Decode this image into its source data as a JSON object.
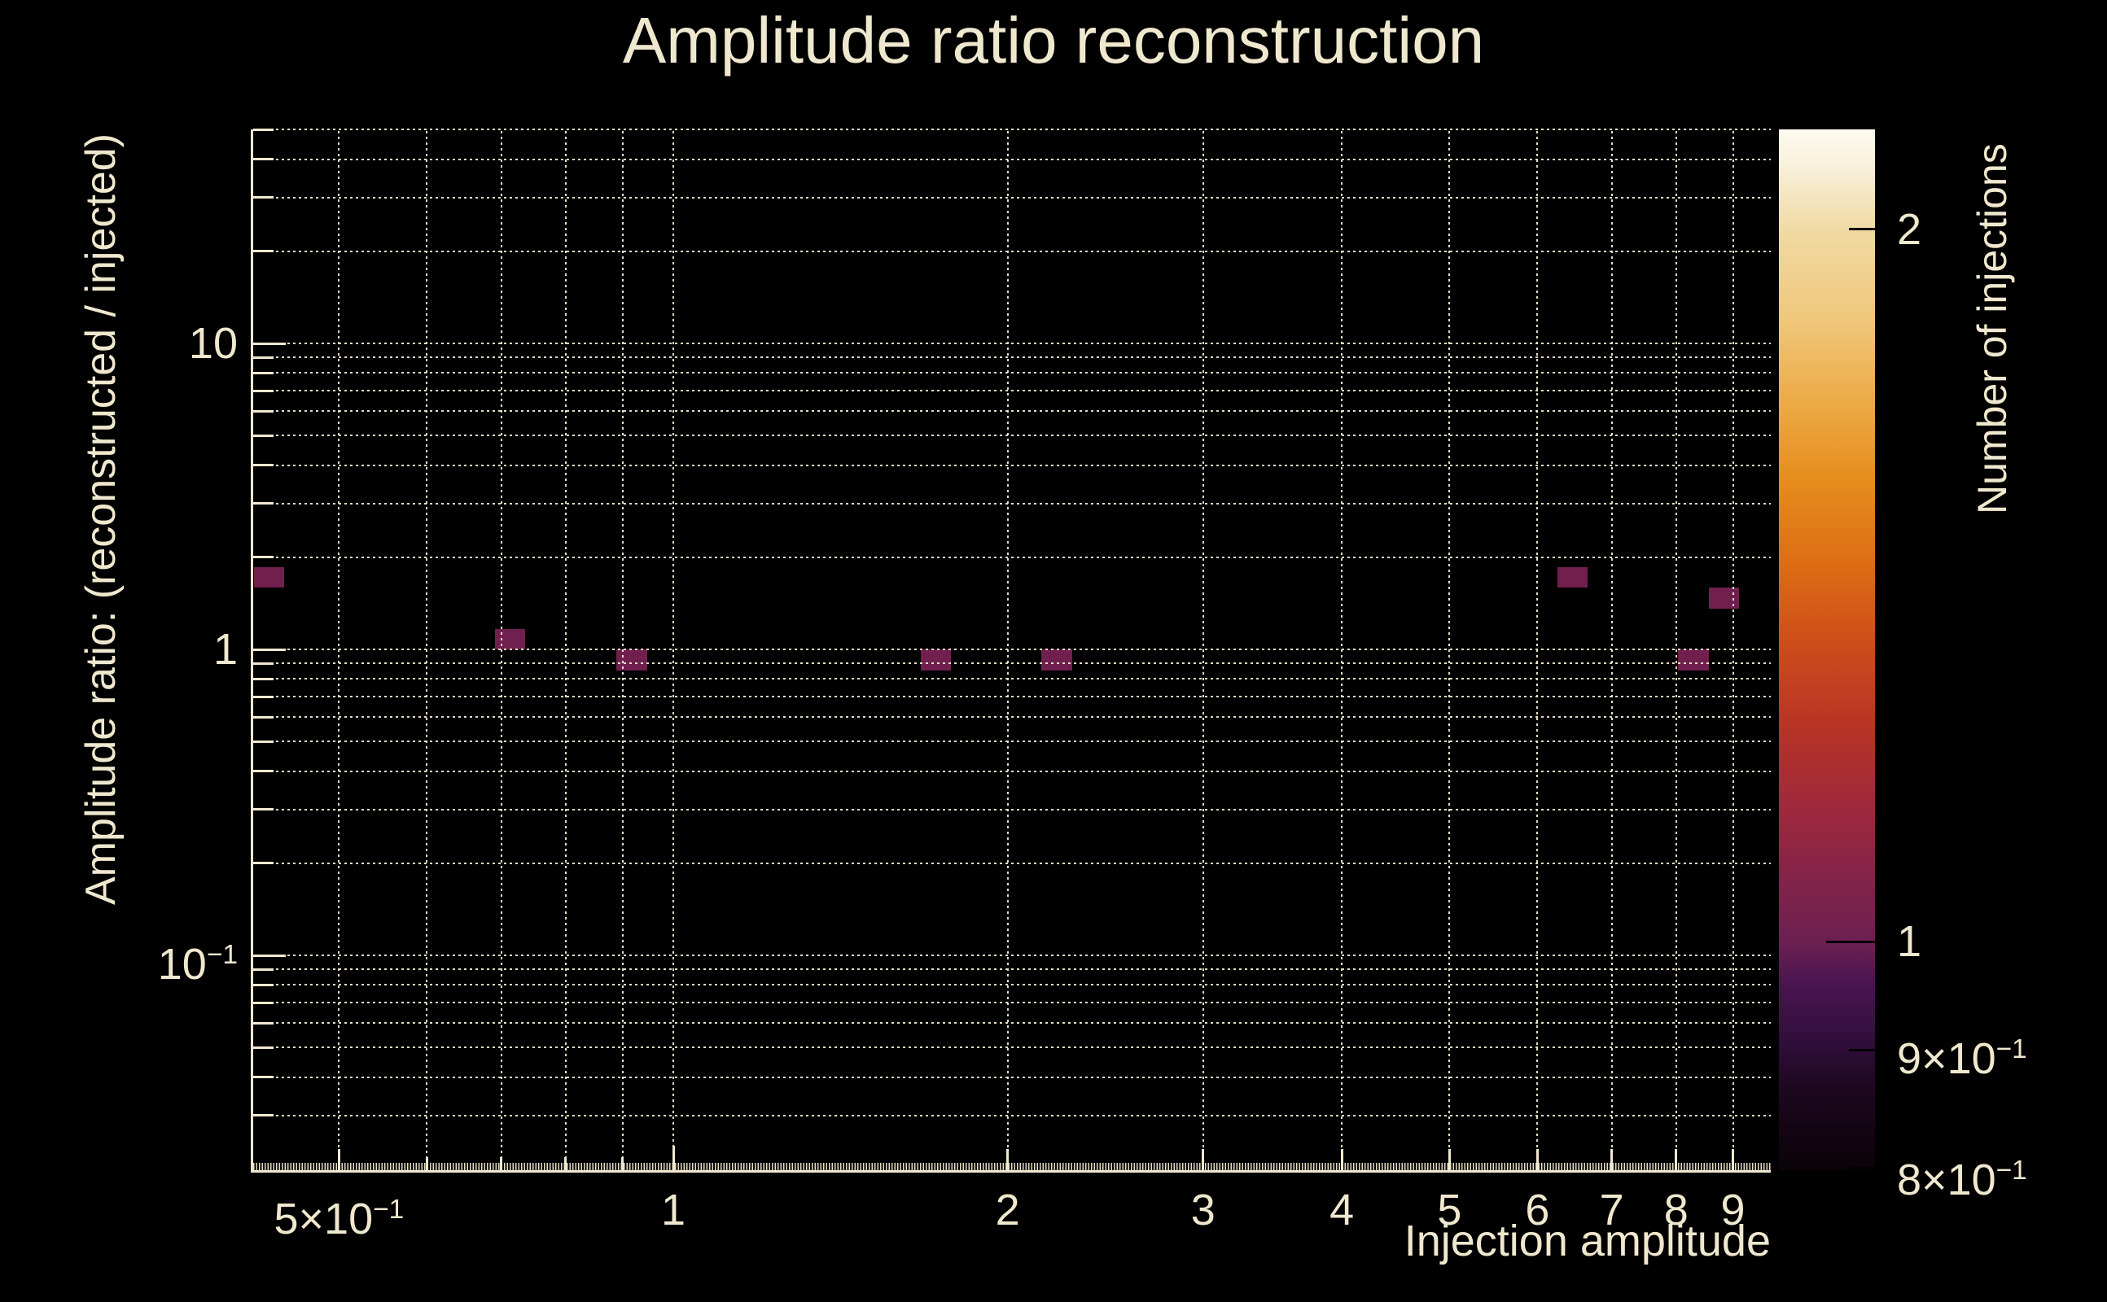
{
  "title": "Amplitude ratio reconstruction",
  "colors": {
    "background": "#000000",
    "text": "#f0e8ce",
    "axis": "#f0e8ce",
    "grid": "rgba(240,232,206,0.95)",
    "bin_fill": "#701f4f",
    "colorbar_tick": "#000000"
  },
  "chart_data": {
    "type": "heatmap",
    "title": "Amplitude ratio reconstruction",
    "xlabel": "Injection amplitude",
    "ylabel": "Amplitude ratio: (reconstructed / injected)",
    "zlabel": "Number of injections",
    "xscale": "log",
    "yscale": "log",
    "zscale": "log",
    "xlim": [
      0.4185,
      9.735
    ],
    "ylim": [
      0.0199,
      50.1
    ],
    "zlim": [
      0.8,
      2.2
    ],
    "grid": true,
    "legend_position": "right-colorbar",
    "x_ticks": [
      {
        "v": 0.5,
        "label": "5×10^−1"
      },
      {
        "v": 0.6
      },
      {
        "v": 0.7
      },
      {
        "v": 0.8
      },
      {
        "v": 0.9
      },
      {
        "v": 1,
        "label": "1",
        "major": true
      },
      {
        "v": 2,
        "label": "2"
      },
      {
        "v": 3,
        "label": "3"
      },
      {
        "v": 4,
        "label": "4"
      },
      {
        "v": 5,
        "label": "5"
      },
      {
        "v": 6,
        "label": "6"
      },
      {
        "v": 7,
        "label": "7"
      },
      {
        "v": 8,
        "label": "8"
      },
      {
        "v": 9,
        "label": "9"
      }
    ],
    "y_ticks": [
      {
        "v": 50
      },
      {
        "v": 40
      },
      {
        "v": 30
      },
      {
        "v": 20
      },
      {
        "v": 10,
        "label": "10",
        "major": true
      },
      {
        "v": 9
      },
      {
        "v": 8
      },
      {
        "v": 7
      },
      {
        "v": 6
      },
      {
        "v": 5
      },
      {
        "v": 4
      },
      {
        "v": 3
      },
      {
        "v": 2
      },
      {
        "v": 1,
        "label": "1",
        "major": true
      },
      {
        "v": 0.9
      },
      {
        "v": 0.8
      },
      {
        "v": 0.7
      },
      {
        "v": 0.6
      },
      {
        "v": 0.5
      },
      {
        "v": 0.4
      },
      {
        "v": 0.3
      },
      {
        "v": 0.2
      },
      {
        "v": 0.1,
        "label": "10^−1",
        "major": true
      },
      {
        "v": 0.09
      },
      {
        "v": 0.08
      },
      {
        "v": 0.07
      },
      {
        "v": 0.06
      },
      {
        "v": 0.05
      },
      {
        "v": 0.04
      },
      {
        "v": 0.03
      }
    ],
    "z_ticks": [
      {
        "v": 2,
        "label": "2"
      },
      {
        "v": 1,
        "label": "1",
        "major": true
      },
      {
        "v": 0.9,
        "label": "9×10^−1"
      },
      {
        "v": 0.8,
        "label": "8×10^−1"
      }
    ],
    "bins": [
      {
        "x": [
          0.419,
          0.446
        ],
        "y": [
          1.593,
          1.855
        ],
        "count": 1
      },
      {
        "x": [
          0.691,
          0.736
        ],
        "y": [
          1.0,
          1.166
        ],
        "count": 1
      },
      {
        "x": [
          0.889,
          0.947
        ],
        "y": [
          0.854,
          1.0
        ],
        "count": 1
      },
      {
        "x": [
          1.67,
          1.779
        ],
        "y": [
          0.854,
          1.0
        ],
        "count": 1
      },
      {
        "x": [
          2.145,
          2.285
        ],
        "y": [
          0.854,
          1.0
        ],
        "count": 1
      },
      {
        "x": [
          6.253,
          6.661
        ],
        "y": [
          1.593,
          1.855
        ],
        "count": 1
      },
      {
        "x": [
          8.036,
          8.559
        ],
        "y": [
          0.854,
          1.0
        ],
        "count": 1
      },
      {
        "x": [
          8.559,
          9.117
        ],
        "y": [
          1.359,
          1.593
        ],
        "count": 1
      }
    ],
    "colorbar_stops": [
      {
        "pos": 0.0,
        "color": "#0a0309"
      },
      {
        "pos": 0.04,
        "color": "#140513"
      },
      {
        "pos": 0.08,
        "color": "#1e0820"
      },
      {
        "pos": 0.12,
        "color": "#2f0e3a"
      },
      {
        "pos": 0.18,
        "color": "#4a1550"
      },
      {
        "pos": 0.22,
        "color": "#6c2051"
      },
      {
        "pos": 0.28,
        "color": "#832349"
      },
      {
        "pos": 0.34,
        "color": "#9c283e"
      },
      {
        "pos": 0.42,
        "color": "#b53227"
      },
      {
        "pos": 0.5,
        "color": "#cc4b1b"
      },
      {
        "pos": 0.58,
        "color": "#dc6c14"
      },
      {
        "pos": 0.66,
        "color": "#e68c1c"
      },
      {
        "pos": 0.74,
        "color": "#ecab48"
      },
      {
        "pos": 0.82,
        "color": "#f0c87d"
      },
      {
        "pos": 0.9,
        "color": "#f0d9a2"
      },
      {
        "pos": 0.96,
        "color": "#f8efd7"
      },
      {
        "pos": 1.0,
        "color": "#fdfaf0"
      }
    ]
  }
}
